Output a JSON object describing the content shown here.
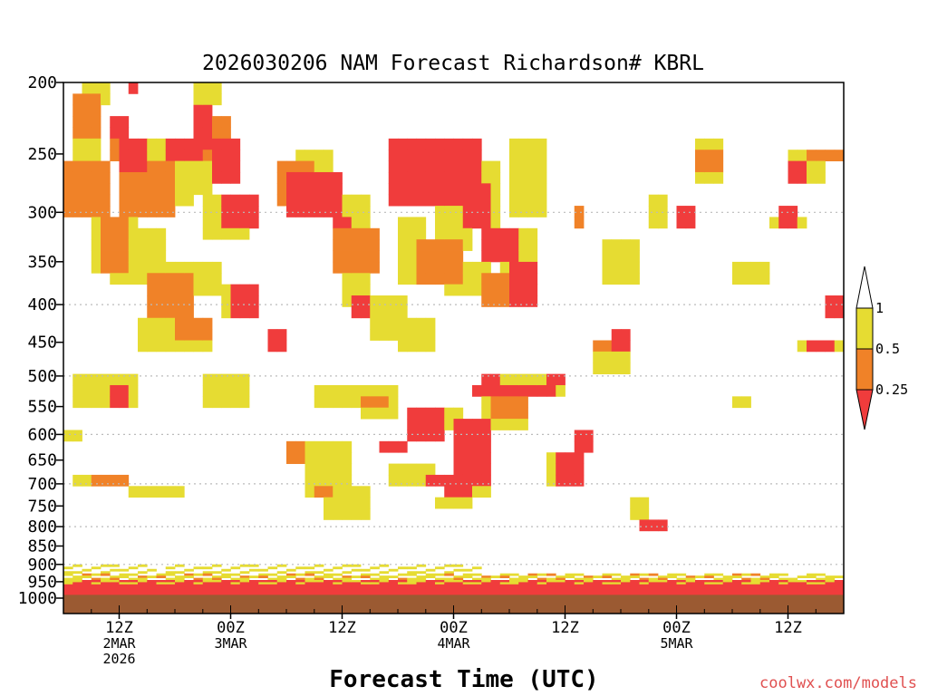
{
  "chart_data": {
    "type": "heatmap",
    "title": "2026030206 NAM Forecast Richardson# KBRL",
    "xlabel": "Forecast Time (UTC)",
    "ylabel": "",
    "credit": "coolwx.com/models",
    "y_axis": {
      "scale": "pressure",
      "unit": "mb",
      "ylim": [
        1000,
        200
      ],
      "ticks": [
        200,
        250,
        300,
        350,
        400,
        450,
        500,
        550,
        600,
        650,
        700,
        750,
        800,
        850,
        900,
        950,
        1000
      ],
      "gridlines": [
        300,
        400,
        500,
        600,
        700,
        800,
        900
      ]
    },
    "x_axis": {
      "unit": "forecast hour",
      "xlim": [
        0,
        84
      ],
      "ticks": [
        {
          "hour": 6,
          "lines": [
            "12Z",
            "2MAR",
            "2026"
          ]
        },
        {
          "hour": 18,
          "lines": [
            "00Z",
            "3MAR"
          ]
        },
        {
          "hour": 30,
          "lines": [
            "12Z"
          ]
        },
        {
          "hour": 42,
          "lines": [
            "00Z",
            "4MAR"
          ]
        },
        {
          "hour": 54,
          "lines": [
            "12Z"
          ]
        },
        {
          "hour": 66,
          "lines": [
            "00Z",
            "5MAR"
          ]
        },
        {
          "hour": 78,
          "lines": [
            "12Z"
          ]
        }
      ]
    },
    "legend": {
      "placement": "right",
      "labels": [
        "1",
        "0.5",
        "0.25"
      ],
      "bins": [
        {
          "range": "< 0.25",
          "color": "#f03c3c"
        },
        {
          "range": "0.25 - 0.5",
          "color": "#f08228"
        },
        {
          "range": "0.5 - 1",
          "color": "#e6dc32"
        },
        {
          "range": "> 1",
          "color": "#ffffff"
        }
      ]
    },
    "colors": {
      "low": "#f03c3c",
      "mid": "#f08228",
      "high": "#e6dc32",
      "ground": "#9b5a32",
      "frame": "#000000",
      "grid": "#bbbbbb"
    },
    "ground_level_mb": 990,
    "regions": [
      {
        "c": 3,
        "h": [
          1.0,
          4.0
        ],
        "p": [
          230,
          280
        ]
      },
      {
        "c": 3,
        "h": [
          9.5,
          14.0
        ],
        "p": [
          255,
          290
        ]
      },
      {
        "c": 3,
        "h": [
          3.0,
          8.0
        ],
        "p": [
          300,
          360
        ]
      },
      {
        "c": 3,
        "h": [
          5.0,
          11.0
        ],
        "p": [
          320,
          380
        ]
      },
      {
        "c": 3,
        "h": [
          10.0,
          17.0
        ],
        "p": [
          350,
          395
        ]
      },
      {
        "c": 3,
        "h": [
          15.0,
          20.0
        ],
        "p": [
          280,
          330
        ]
      },
      {
        "c": 3,
        "h": [
          8.0,
          16.0
        ],
        "p": [
          410,
          465
        ]
      },
      {
        "c": 3,
        "h": [
          15.0,
          20.0
        ],
        "p": [
          500,
          560
        ]
      },
      {
        "c": 3,
        "h": [
          1.0,
          8.0
        ],
        "p": [
          500,
          555
        ]
      },
      {
        "c": 3,
        "h": [
          0.5,
          2.0
        ],
        "p": [
          585,
          605
        ]
      },
      {
        "c": 3,
        "h": [
          1.5,
          6.5
        ],
        "p": [
          690,
          715
        ]
      },
      {
        "c": 3,
        "h": [
          7.5,
          13.0
        ],
        "p": [
          710,
          740
        ]
      },
      {
        "c": 3,
        "h": [
          26.5,
          31.0
        ],
        "p": [
          610,
          720
        ]
      },
      {
        "c": 3,
        "h": [
          28.0,
          33.0
        ],
        "p": [
          700,
          780
        ]
      },
      {
        "c": 3,
        "h": [
          27.0,
          32.0
        ],
        "p": [
          510,
          560
        ]
      },
      {
        "c": 3,
        "h": [
          32.0,
          36.0
        ],
        "p": [
          510,
          580
        ]
      },
      {
        "c": 3,
        "h": [
          30.0,
          33.0
        ],
        "p": [
          280,
          400
        ]
      },
      {
        "c": 3,
        "h": [
          33.0,
          36.5
        ],
        "p": [
          390,
          450
        ]
      },
      {
        "c": 3,
        "h": [
          36.0,
          40.0
        ],
        "p": [
          420,
          470
        ]
      },
      {
        "c": 3,
        "h": [
          36.5,
          38.5
        ],
        "p": [
          300,
          370
        ]
      },
      {
        "c": 3,
        "h": [
          25.0,
          29.0
        ],
        "p": [
          250,
          290
        ]
      },
      {
        "c": 3,
        "h": [
          38.0,
          43.0
        ],
        "p": [
          560,
          600
        ]
      },
      {
        "c": 3,
        "h": [
          35.0,
          40.0
        ],
        "p": [
          650,
          710
        ]
      },
      {
        "c": 3,
        "h": [
          42.0,
          46.0
        ],
        "p": [
          600,
          720
        ]
      },
      {
        "c": 3,
        "h": [
          40.0,
          44.0
        ],
        "p": [
          720,
          760
        ]
      },
      {
        "c": 3,
        "h": [
          45.0,
          50.0
        ],
        "p": [
          500,
          600
        ]
      },
      {
        "c": 3,
        "h": [
          48.0,
          53.5
        ],
        "p": [
          490,
          540
        ]
      },
      {
        "c": 3,
        "h": [
          41.0,
          46.0
        ],
        "p": [
          350,
          390
        ]
      },
      {
        "c": 3,
        "h": [
          40.5,
          44.0
        ],
        "p": [
          290,
          340
        ]
      },
      {
        "c": 3,
        "h": [
          44.0,
          47.0
        ],
        "p": [
          260,
          310
        ]
      },
      {
        "c": 3,
        "h": [
          47.0,
          50.5
        ],
        "p": [
          320,
          400
        ]
      },
      {
        "c": 3,
        "h": [
          48.0,
          52.0
        ],
        "p": [
          240,
          300
        ]
      },
      {
        "c": 3,
        "h": [
          52.0,
          55.0
        ],
        "p": [
          640,
          700
        ]
      },
      {
        "c": 3,
        "h": [
          57.5,
          61.0
        ],
        "p": [
          440,
          500
        ]
      },
      {
        "c": 3,
        "h": [
          58.5,
          61.5
        ],
        "p": [
          330,
          380
        ]
      },
      {
        "c": 3,
        "h": [
          61.0,
          63.0
        ],
        "p": [
          740,
          790
        ]
      },
      {
        "c": 3,
        "h": [
          63.0,
          65.0
        ],
        "p": [
          280,
          310
        ]
      },
      {
        "c": 3,
        "h": [
          68.0,
          71.0
        ],
        "p": [
          240,
          270
        ]
      },
      {
        "c": 3,
        "h": [
          72.0,
          76.0
        ],
        "p": [
          355,
          380
        ]
      },
      {
        "c": 3,
        "h": [
          72.0,
          74.0
        ],
        "p": [
          540,
          550
        ]
      },
      {
        "c": 3,
        "h": [
          78.5,
          82.0
        ],
        "p": [
          250,
          270
        ]
      },
      {
        "c": 3,
        "h": [
          81.0,
          84.0
        ],
        "p": [
          545,
          555
        ]
      },
      {
        "c": 3,
        "h": [
          79.0,
          84.0
        ],
        "p": [
          440,
          470
        ]
      },
      {
        "c": 3,
        "h": [
          76.0,
          80.0
        ],
        "p": [
          300,
          320
        ]
      },
      {
        "c": 3,
        "h": [
          8.0,
          16.0
        ],
        "p": [
          235,
          280
        ]
      },
      {
        "c": 3,
        "h": [
          17.0,
          21.0
        ],
        "p": [
          380,
          420
        ]
      },
      {
        "c": 3,
        "h": [
          2.5,
          4.5
        ],
        "p": [
          200,
          215
        ]
      },
      {
        "c": 3,
        "h": [
          14.5,
          16.5
        ],
        "p": [
          200,
          215
        ]
      },
      {
        "c": 3,
        "h": [
          67.0,
          70.0
        ],
        "p": [
          770,
          790
        ]
      },
      {
        "c": 2,
        "h": [
          0.5,
          4.5
        ],
        "p": [
          255,
          300
        ]
      },
      {
        "c": 2,
        "h": [
          6.5,
          11.5
        ],
        "p": [
          260,
          300
        ]
      },
      {
        "c": 2,
        "h": [
          5.0,
          8.0
        ],
        "p": [
          235,
          255
        ]
      },
      {
        "c": 2,
        "h": [
          9.5,
          14.0
        ],
        "p": [
          365,
          420
        ]
      },
      {
        "c": 2,
        "h": [
          12.0,
          15.5
        ],
        "p": [
          410,
          455
        ]
      },
      {
        "c": 2,
        "h": [
          4.5,
          7.0
        ],
        "p": [
          300,
          360
        ]
      },
      {
        "c": 2,
        "h": [
          15.0,
          18.0
        ],
        "p": [
          225,
          260
        ]
      },
      {
        "c": 2,
        "h": [
          23.5,
          26.5
        ],
        "p": [
          260,
          290
        ]
      },
      {
        "c": 2,
        "h": [
          29.5,
          33.5
        ],
        "p": [
          320,
          360
        ]
      },
      {
        "c": 2,
        "h": [
          32.0,
          35.0
        ],
        "p": [
          540,
          560
        ]
      },
      {
        "c": 2,
        "h": [
          24.0,
          26.0
        ],
        "p": [
          620,
          650
        ]
      },
      {
        "c": 2,
        "h": [
          27.0,
          29.0
        ],
        "p": [
          700,
          720
        ]
      },
      {
        "c": 2,
        "h": [
          38.5,
          43.0
        ],
        "p": [
          330,
          370
        ]
      },
      {
        "c": 2,
        "h": [
          46.0,
          50.0
        ],
        "p": [
          540,
          580
        ]
      },
      {
        "c": 2,
        "h": [
          45.0,
          48.5
        ],
        "p": [
          365,
          400
        ]
      },
      {
        "c": 2,
        "h": [
          57.5,
          60.0
        ],
        "p": [
          440,
          470
        ]
      },
      {
        "c": 2,
        "h": [
          68.0,
          71.0
        ],
        "p": [
          245,
          265
        ]
      },
      {
        "c": 2,
        "h": [
          80.0,
          83.5
        ],
        "p": [
          245,
          260
        ]
      },
      {
        "c": 2,
        "h": [
          3.5,
          6.5
        ],
        "p": [
          690,
          705
        ]
      },
      {
        "c": 2,
        "h": [
          55.0,
          56.0
        ],
        "p": [
          290,
          320
        ]
      },
      {
        "c": 2,
        "h": [
          1.5,
          3.5
        ],
        "p": [
          210,
          240
        ]
      },
      {
        "c": 1,
        "h": [
          6.5,
          8.5
        ],
        "p": [
          235,
          265
        ]
      },
      {
        "c": 1,
        "h": [
          11.0,
          14.5
        ],
        "p": [
          235,
          260
        ]
      },
      {
        "c": 1,
        "h": [
          14.0,
          16.0
        ],
        "p": [
          215,
          250
        ]
      },
      {
        "c": 1,
        "h": [
          16.5,
          18.5
        ],
        "p": [
          240,
          270
        ]
      },
      {
        "c": 1,
        "h": [
          17.0,
          21.0
        ],
        "p": [
          280,
          320
        ]
      },
      {
        "c": 1,
        "h": [
          24.5,
          30.0
        ],
        "p": [
          265,
          300
        ]
      },
      {
        "c": 1,
        "h": [
          29.0,
          31.0
        ],
        "p": [
          300,
          315
        ]
      },
      {
        "c": 1,
        "h": [
          18.0,
          21.0
        ],
        "p": [
          380,
          410
        ]
      },
      {
        "c": 1,
        "h": [
          22.0,
          24.0
        ],
        "p": [
          435,
          470
        ]
      },
      {
        "c": 1,
        "h": [
          35.0,
          45.0
        ],
        "p": [
          240,
          290
        ]
      },
      {
        "c": 1,
        "h": [
          43.0,
          46.0
        ],
        "p": [
          270,
          320
        ]
      },
      {
        "c": 1,
        "h": [
          45.5,
          48.5
        ],
        "p": [
          310,
          350
        ]
      },
      {
        "c": 1,
        "h": [
          48.5,
          51.0
        ],
        "p": [
          350,
          400
        ]
      },
      {
        "c": 1,
        "h": [
          44.0,
          53.0
        ],
        "p": [
          510,
          535
        ]
      },
      {
        "c": 1,
        "h": [
          42.5,
          45.5
        ],
        "p": [
          580,
          700
        ]
      },
      {
        "c": 1,
        "h": [
          37.5,
          41.0
        ],
        "p": [
          560,
          610
        ]
      },
      {
        "c": 1,
        "h": [
          34.5,
          37.0
        ],
        "p": [
          610,
          630
        ]
      },
      {
        "c": 1,
        "h": [
          39.0,
          41.5
        ],
        "p": [
          690,
          710
        ]
      },
      {
        "c": 1,
        "h": [
          41.5,
          43.5
        ],
        "p": [
          705,
          730
        ]
      },
      {
        "c": 1,
        "h": [
          53.5,
          55.5
        ],
        "p": [
          640,
          700
        ]
      },
      {
        "c": 1,
        "h": [
          59.0,
          61.0
        ],
        "p": [
          430,
          460
        ]
      },
      {
        "c": 1,
        "h": [
          62.0,
          65.0
        ],
        "p": [
          770,
          800
        ]
      },
      {
        "c": 1,
        "h": [
          5.5,
          6.5
        ],
        "p": [
          510,
          545
        ]
      },
      {
        "c": 1,
        "h": [
          66.0,
          68.0
        ],
        "p": [
          290,
          310
        ]
      },
      {
        "c": 1,
        "h": [
          77.5,
          78.5
        ],
        "p": [
          290,
          310
        ]
      },
      {
        "c": 1,
        "h": [
          78.5,
          79.5
        ],
        "p": [
          255,
          270
        ]
      },
      {
        "c": 1,
        "h": [
          82.5,
          83.5
        ],
        "p": [
          390,
          410
        ]
      },
      {
        "c": 1,
        "h": [
          80.5,
          82.5
        ],
        "p": [
          450,
          465
        ]
      },
      {
        "c": 1,
        "h": [
          31.5,
          32.5
        ],
        "p": [
          385,
          410
        ]
      },
      {
        "c": 1,
        "h": [
          45.5,
          46.5
        ],
        "p": [
          500,
          540
        ]
      },
      {
        "c": 1,
        "h": [
          52.5,
          53.5
        ],
        "p": [
          490,
          510
        ]
      },
      {
        "c": 1,
        "h": [
          55.5,
          56.5
        ],
        "p": [
          590,
          640
        ]
      },
      {
        "c": 1,
        "h": [
          7.0,
          8.0
        ],
        "p": [
          200,
          210
        ]
      },
      {
        "c": 1,
        "h": [
          5.5,
          6.5
        ],
        "p": [
          225,
          235
        ]
      }
    ]
  }
}
